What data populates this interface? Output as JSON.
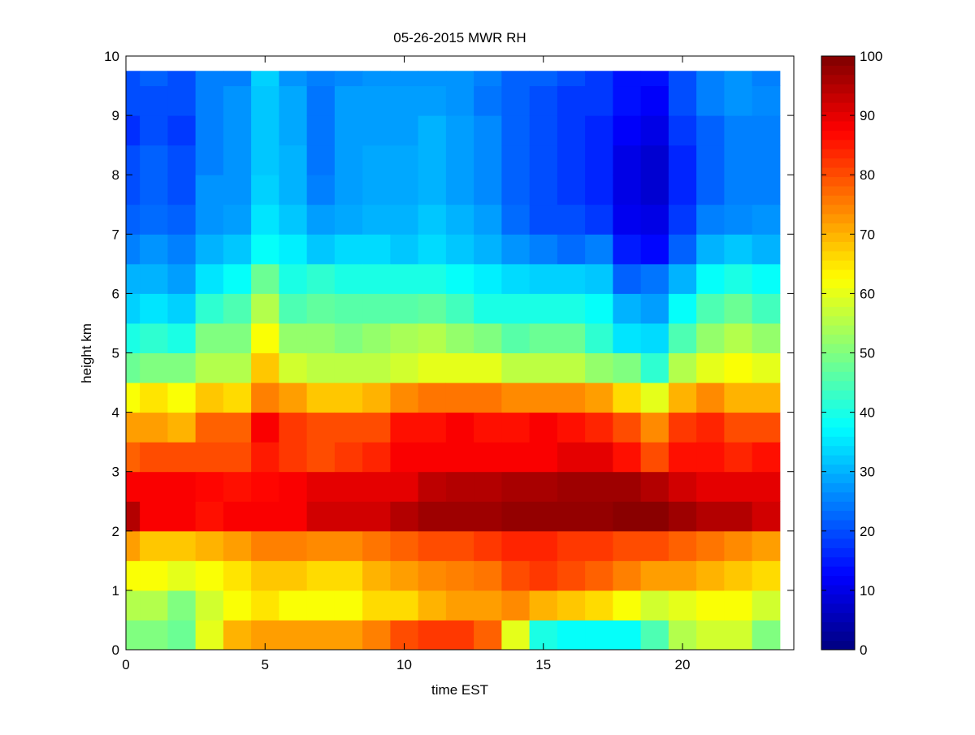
{
  "chart_data": {
    "type": "heatmap",
    "title": "05-26-2015 MWR RH",
    "xlabel": "time EST",
    "ylabel": "height km",
    "xlim": [
      0,
      24
    ],
    "ylim": [
      0,
      10
    ],
    "xticks": [
      "0",
      "5",
      "10",
      "15",
      "20"
    ],
    "yticks": [
      "0",
      "1",
      "2",
      "3",
      "4",
      "5",
      "6",
      "7",
      "8",
      "9",
      "10"
    ],
    "colormap": "jet",
    "clim": [
      0,
      100
    ],
    "colorbar_ticks": [
      "0",
      "10",
      "20",
      "30",
      "40",
      "50",
      "60",
      "70",
      "80",
      "90",
      "100"
    ],
    "time_hours": [
      0,
      1,
      2,
      3,
      4,
      5,
      6,
      7,
      8,
      9,
      10,
      11,
      12,
      13,
      14,
      15,
      16,
      17,
      18,
      19,
      20,
      21,
      22,
      23
    ],
    "height_levels_km": [
      0,
      0.5,
      1,
      1.5,
      2,
      2.5,
      3,
      3.5,
      4,
      4.5,
      5,
      5.5,
      6,
      6.5,
      7,
      7.5,
      8,
      8.5,
      9,
      9.5
    ],
    "top_height_km": 9.75,
    "rh_percent": [
      [
        50,
        55,
        62,
        72,
        95,
        88,
        78,
        72,
        62,
        48,
        40,
        33,
        30,
        25,
        22,
        20,
        20,
        17,
        20,
        20
      ],
      [
        50,
        55,
        62,
        68,
        88,
        88,
        80,
        72,
        65,
        50,
        42,
        35,
        30,
        27,
        23,
        22,
        22,
        20,
        20,
        22
      ],
      [
        48,
        50,
        60,
        68,
        88,
        88,
        80,
        70,
        62,
        50,
        40,
        33,
        28,
        25,
        22,
        20,
        20,
        18,
        20,
        20
      ],
      [
        60,
        58,
        62,
        70,
        86,
        87,
        80,
        78,
        68,
        55,
        50,
        42,
        35,
        30,
        27,
        27,
        25,
        25,
        25,
        25
      ],
      [
        70,
        62,
        65,
        72,
        88,
        86,
        80,
        78,
        66,
        55,
        50,
        45,
        38,
        32,
        28,
        27,
        27,
        27,
        27,
        25
      ],
      [
        72,
        65,
        68,
        75,
        88,
        87,
        85,
        88,
        75,
        68,
        62,
        55,
        48,
        38,
        35,
        33,
        32,
        32,
        32,
        33
      ],
      [
        72,
        62,
        68,
        75,
        88,
        88,
        82,
        82,
        72,
        58,
        52,
        45,
        40,
        36,
        32,
        30,
        30,
        29,
        29,
        27
      ],
      [
        72,
        62,
        66,
        74,
        92,
        90,
        80,
        80,
        68,
        56,
        52,
        47,
        42,
        32,
        28,
        25,
        24,
        24,
        24,
        25
      ],
      [
        72,
        62,
        66,
        74,
        92,
        90,
        82,
        80,
        68,
        56,
        50,
        46,
        40,
        34,
        29,
        28,
        28,
        28,
        28,
        26
      ],
      [
        75,
        66,
        70,
        76,
        92,
        90,
        84,
        80,
        70,
        56,
        52,
        46,
        40,
        34,
        30,
        29,
        29,
        28,
        28,
        27
      ],
      [
        80,
        66,
        72,
        78,
        95,
        90,
        88,
        86,
        74,
        58,
        54,
        46,
        40,
        32,
        30,
        29,
        29,
        28,
        28,
        27
      ],
      [
        82,
        70,
        74,
        80,
        97,
        94,
        88,
        86,
        76,
        60,
        55,
        47,
        40,
        34,
        32,
        30,
        30,
        30,
        28,
        27
      ],
      [
        82,
        72,
        75,
        80,
        97,
        95,
        88,
        88,
        76,
        60,
        52,
        44,
        38,
        32,
        30,
        28,
        28,
        28,
        27,
        27
      ],
      [
        78,
        72,
        76,
        82,
        97,
        95,
        88,
        86,
        76,
        60,
        50,
        40,
        36,
        30,
        28,
        26,
        26,
        26,
        24,
        25
      ],
      [
        60,
        74,
        80,
        84,
        98,
        96,
        88,
        86,
        74,
        56,
        46,
        40,
        34,
        27,
        23,
        22,
        22,
        22,
        22,
        22
      ],
      [
        40,
        70,
        82,
        84,
        98,
        96,
        88,
        88,
        74,
        56,
        48,
        40,
        33,
        25,
        20,
        20,
        20,
        20,
        20,
        22
      ],
      [
        38,
        68,
        80,
        82,
        98,
        97,
        90,
        86,
        74,
        56,
        48,
        40,
        33,
        23,
        20,
        18,
        18,
        18,
        18,
        20
      ],
      [
        38,
        66,
        78,
        82,
        98,
        97,
        90,
        84,
        72,
        52,
        42,
        38,
        32,
        25,
        18,
        16,
        16,
        16,
        18,
        18
      ],
      [
        38,
        62,
        75,
        80,
        99,
        97,
        86,
        80,
        66,
        50,
        35,
        30,
        22,
        15,
        11,
        10,
        10,
        12,
        14,
        14
      ],
      [
        45,
        58,
        72,
        80,
        99,
        95,
        80,
        74,
        60,
        42,
        34,
        28,
        24,
        13,
        10,
        8,
        8,
        10,
        12,
        14
      ],
      [
        55,
        60,
        72,
        78,
        97,
        92,
        86,
        82,
        70,
        55,
        45,
        38,
        30,
        22,
        18,
        16,
        16,
        18,
        20,
        20
      ],
      [
        58,
        62,
        70,
        76,
        95,
        90,
        86,
        84,
        74,
        60,
        52,
        45,
        38,
        30,
        25,
        22,
        22,
        22,
        25,
        25
      ],
      [
        58,
        62,
        68,
        74,
        95,
        90,
        84,
        80,
        70,
        62,
        55,
        48,
        40,
        32,
        26,
        25,
        25,
        25,
        27,
        27
      ],
      [
        50,
        58,
        66,
        72,
        92,
        90,
        86,
        80,
        70,
        60,
        52,
        44,
        38,
        30,
        27,
        25,
        25,
        25,
        26,
        25
      ]
    ]
  }
}
